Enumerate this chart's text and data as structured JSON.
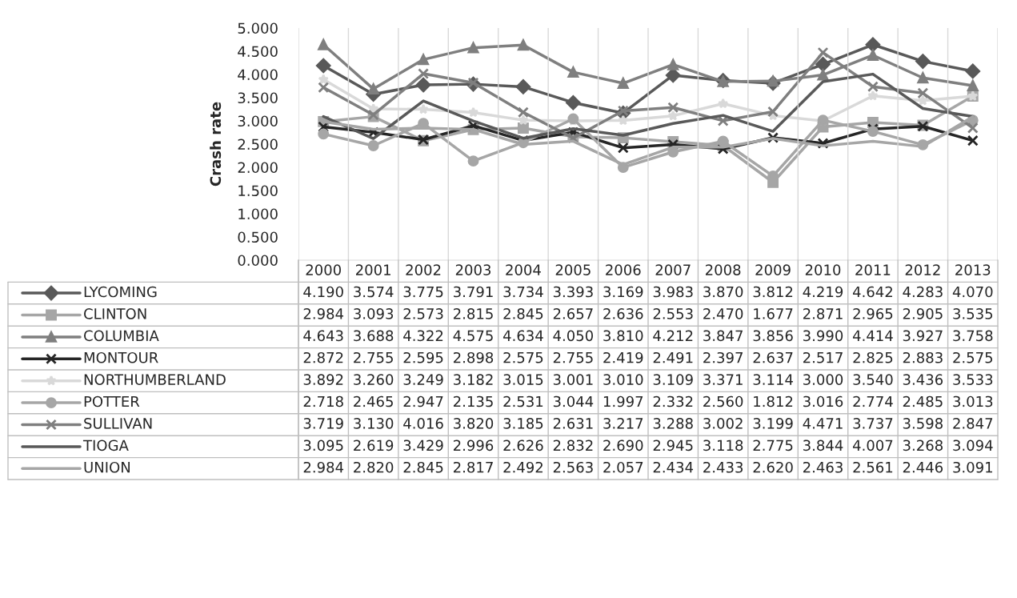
{
  "chart_data": {
    "type": "line",
    "ylabel": "Crash rate",
    "categories": [
      "2000",
      "2001",
      "2002",
      "2003",
      "2004",
      "2005",
      "2006",
      "2007",
      "2008",
      "2009",
      "2010",
      "2011",
      "2012",
      "2013"
    ],
    "ylim": [
      0,
      5
    ],
    "yticks": [
      {
        "value": 0,
        "label": "0.000"
      },
      {
        "value": 0.5,
        "label": "0.500"
      },
      {
        "value": 1,
        "label": "1.000"
      },
      {
        "value": 1.5,
        "label": "1.500"
      },
      {
        "value": 2,
        "label": "2.000"
      },
      {
        "value": 2.5,
        "label": "2.500"
      },
      {
        "value": 3,
        "label": "3.000"
      },
      {
        "value": 3.5,
        "label": "3.500"
      },
      {
        "value": 4,
        "label": "4.000"
      },
      {
        "value": 4.5,
        "label": "4.500"
      },
      {
        "value": 5,
        "label": "5.000"
      }
    ],
    "grid": "x",
    "legend": "bottom",
    "series": [
      {
        "name": "LYCOMING",
        "color": "#595959",
        "marker": "diamond",
        "values": [
          4.19,
          3.574,
          3.775,
          3.791,
          3.734,
          3.393,
          3.169,
          3.983,
          3.87,
          3.812,
          4.219,
          4.642,
          4.283,
          4.07
        ],
        "value_labels": [
          "4.190",
          "3.574",
          "3.775",
          "3.791",
          "3.734",
          "3.393",
          "3.169",
          "3.983",
          "3.870",
          "3.812",
          "4.219",
          "4.642",
          "4.283",
          "4.070"
        ]
      },
      {
        "name": "CLINTON",
        "color": "#a6a6a6",
        "marker": "square",
        "values": [
          2.984,
          3.093,
          2.573,
          2.815,
          2.845,
          2.657,
          2.636,
          2.553,
          2.47,
          1.677,
          2.871,
          2.965,
          2.905,
          3.535
        ],
        "value_labels": [
          "2.984",
          "3.093",
          "2.573",
          "2.815",
          "2.845",
          "2.657",
          "2.636",
          "2.553",
          "2.470",
          "1.677",
          "2.871",
          "2.965",
          "2.905",
          "3.535"
        ]
      },
      {
        "name": "COLUMBIA",
        "color": "#7f7f7f",
        "marker": "triangle",
        "values": [
          4.643,
          3.688,
          4.322,
          4.575,
          4.634,
          4.05,
          3.81,
          4.212,
          3.847,
          3.856,
          3.99,
          4.414,
          3.927,
          3.758
        ],
        "value_labels": [
          "4.643",
          "3.688",
          "4.322",
          "4.575",
          "4.634",
          "4.050",
          "3.810",
          "4.212",
          "3.847",
          "3.856",
          "3.990",
          "4.414",
          "3.927",
          "3.758"
        ]
      },
      {
        "name": "MONTOUR",
        "color": "#262626",
        "marker": "cross",
        "values": [
          2.872,
          2.755,
          2.595,
          2.898,
          2.575,
          2.755,
          2.419,
          2.491,
          2.397,
          2.637,
          2.517,
          2.825,
          2.883,
          2.575
        ],
        "value_labels": [
          "2.872",
          "2.755",
          "2.595",
          "2.898",
          "2.575",
          "2.755",
          "2.419",
          "2.491",
          "2.397",
          "2.637",
          "2.517",
          "2.825",
          "2.883",
          "2.575"
        ]
      },
      {
        "name": "NORTHUMBERLAND",
        "color": "#d9d9d9",
        "marker": "star",
        "values": [
          3.892,
          3.26,
          3.249,
          3.182,
          3.015,
          3.001,
          3.01,
          3.109,
          3.371,
          3.114,
          3.0,
          3.54,
          3.436,
          3.533
        ],
        "value_labels": [
          "3.892",
          "3.260",
          "3.249",
          "3.182",
          "3.015",
          "3.001",
          "3.010",
          "3.109",
          "3.371",
          "3.114",
          "3.000",
          "3.540",
          "3.436",
          "3.533"
        ]
      },
      {
        "name": "POTTER",
        "color": "#a6a6a6",
        "marker": "circle",
        "values": [
          2.718,
          2.465,
          2.947,
          2.135,
          2.531,
          3.044,
          1.997,
          2.332,
          2.56,
          1.812,
          3.016,
          2.774,
          2.485,
          3.013
        ],
        "value_labels": [
          "2.718",
          "2.465",
          "2.947",
          "2.135",
          "2.531",
          "3.044",
          "1.997",
          "2.332",
          "2.560",
          "1.812",
          "3.016",
          "2.774",
          "2.485",
          "3.013"
        ]
      },
      {
        "name": "SULLIVAN",
        "color": "#7f7f7f",
        "marker": "cross",
        "values": [
          3.719,
          3.13,
          4.016,
          3.82,
          3.185,
          2.631,
          3.217,
          3.288,
          3.002,
          3.199,
          4.471,
          3.737,
          3.598,
          2.847
        ],
        "value_labels": [
          "3.719",
          "3.130",
          "4.016",
          "3.820",
          "3.185",
          "2.631",
          "3.217",
          "3.288",
          "3.002",
          "3.199",
          "4.471",
          "3.737",
          "3.598",
          "2.847"
        ]
      },
      {
        "name": "TIOGA",
        "color": "#595959",
        "marker": "none",
        "values": [
          3.095,
          2.619,
          3.429,
          2.996,
          2.626,
          2.832,
          2.69,
          2.945,
          3.118,
          2.775,
          3.844,
          4.007,
          3.268,
          3.094
        ],
        "value_labels": [
          "3.095",
          "2.619",
          "3.429",
          "2.996",
          "2.626",
          "2.832",
          "2.690",
          "2.945",
          "3.118",
          "2.775",
          "3.844",
          "4.007",
          "3.268",
          "3.094"
        ]
      },
      {
        "name": "UNION",
        "color": "#a6a6a6",
        "marker": "none",
        "values": [
          2.984,
          2.82,
          2.845,
          2.817,
          2.492,
          2.563,
          2.057,
          2.434,
          2.433,
          2.62,
          2.463,
          2.561,
          2.446,
          3.091
        ],
        "value_labels": [
          "2.984",
          "2.820",
          "2.845",
          "2.817",
          "2.492",
          "2.563",
          "2.057",
          "2.434",
          "2.433",
          "2.620",
          "2.463",
          "2.561",
          "2.446",
          "3.091"
        ]
      }
    ]
  }
}
